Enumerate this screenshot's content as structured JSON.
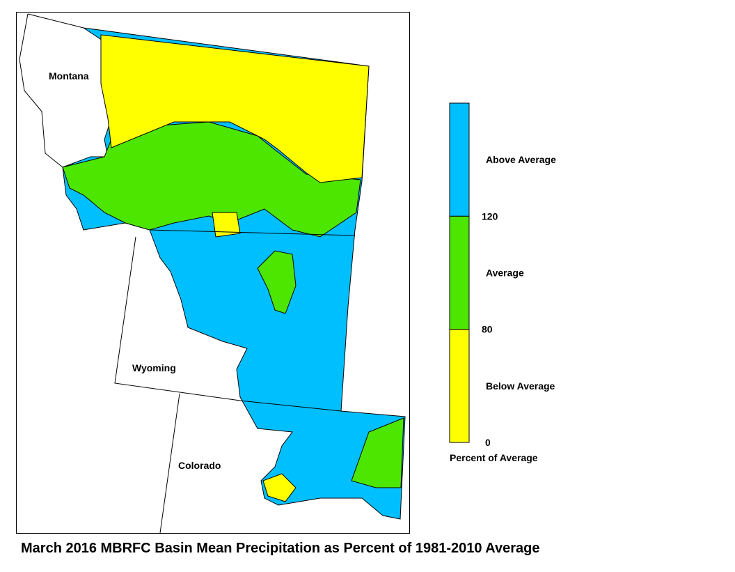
{
  "title": "March 2016 MBRFC Basin Mean Precipitation as Percent of 1981-2010 Average",
  "states": [
    "Montana",
    "Wyoming",
    "Colorado"
  ],
  "legend": {
    "caption": "Percent of Average",
    "ticks": [
      120,
      80,
      0
    ],
    "classes": [
      {
        "label": "Above Average",
        "color": "#00bfff"
      },
      {
        "label": "Average",
        "color": "#4ce600"
      },
      {
        "label": "Below Average",
        "color": "#ffff00"
      }
    ]
  }
}
